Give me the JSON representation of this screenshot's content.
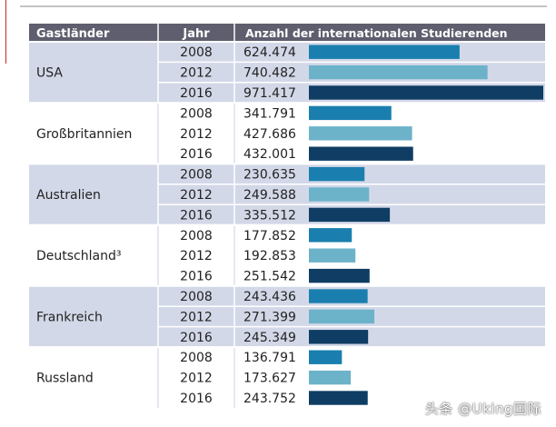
{
  "chart_data": {
    "type": "table",
    "headers": {
      "country": "Gastländer",
      "year": "Jahr",
      "value": "Anzahl der internationalen Studierenden"
    },
    "series_years": [
      "2008",
      "2012",
      "2016"
    ],
    "groups": [
      {
        "country": "USA",
        "rows": [
          {
            "year": "2008",
            "label": "624.474",
            "value": 624474
          },
          {
            "year": "2012",
            "label": "740.482",
            "value": 740482
          },
          {
            "year": "2016",
            "label": "971.417",
            "value": 971417
          }
        ]
      },
      {
        "country": "Großbritannien",
        "rows": [
          {
            "year": "2008",
            "label": "341.791",
            "value": 341791
          },
          {
            "year": "2012",
            "label": "427.686",
            "value": 427686
          },
          {
            "year": "2016",
            "label": "432.001",
            "value": 432001
          }
        ]
      },
      {
        "country": "Australien",
        "rows": [
          {
            "year": "2008",
            "label": "230.635",
            "value": 230635
          },
          {
            "year": "2012",
            "label": "249.588",
            "value": 249588
          },
          {
            "year": "2016",
            "label": "335.512",
            "value": 335512
          }
        ]
      },
      {
        "country": "Deutschland³",
        "rows": [
          {
            "year": "2008",
            "label": "177.852",
            "value": 177852
          },
          {
            "year": "2012",
            "label": "192.853",
            "value": 192853
          },
          {
            "year": "2016",
            "label": "251.542",
            "value": 251542
          }
        ]
      },
      {
        "country": "Frankreich",
        "rows": [
          {
            "year": "2008",
            "label": "243.436",
            "value": 243436
          },
          {
            "year": "2012",
            "label": "271.399",
            "value": 271399
          },
          {
            "year": "2016",
            "label": "245.349",
            "value": 245349
          }
        ]
      },
      {
        "country": "Russland",
        "rows": [
          {
            "year": "2008",
            "label": "136.791",
            "value": 136791
          },
          {
            "year": "2012",
            "label": "173.627",
            "value": 173627
          },
          {
            "year": "2016",
            "label": "243.752",
            "value": 243752
          }
        ]
      }
    ],
    "xlim": [
      0,
      1000000
    ],
    "colors": {
      "2008": "#1a7fae",
      "2012": "#6cb3ca",
      "2016": "#0f3d63"
    },
    "header_bg": "#5e5e6e",
    "group_shade": "#d3d8e8"
  },
  "watermark": "头条 @Uking国际"
}
